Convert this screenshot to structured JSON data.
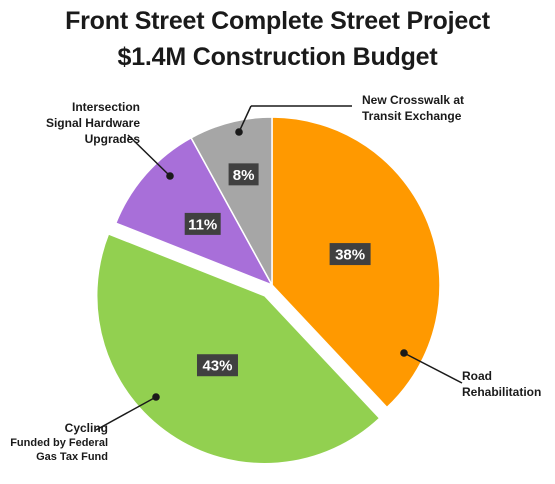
{
  "chart_data": {
    "type": "pie",
    "title": "Front Street Complete Street Project",
    "subtitle": "$1.4M Construction Budget",
    "slices": [
      {
        "label": "Road Rehabilitation",
        "value": 38,
        "display": "38%",
        "color": "#FF9900"
      },
      {
        "label": "Cycling Funded by Federal Gas Tax Fund",
        "value": 43,
        "display": "43%",
        "color": "#92D050"
      },
      {
        "label": "Intersection Signal Hardware Upgrades",
        "value": 11,
        "display": "11%",
        "color": "#A86FD9"
      },
      {
        "label": "New Crosswalk at Transit Exchange",
        "value": 8,
        "display": "8%",
        "color": "#A6A6A6"
      }
    ],
    "labels": {
      "road": [
        "Road",
        "Rehabilitation"
      ],
      "cycling": [
        "Cycling",
        "Funded by Federal",
        "Gas Tax Fund"
      ],
      "intersection": [
        "Intersection",
        "Signal Hardware",
        "Upgrades"
      ],
      "crosswalk": [
        "New Crosswalk at",
        "Transit Exchange"
      ]
    },
    "exploded": "Cycling"
  }
}
